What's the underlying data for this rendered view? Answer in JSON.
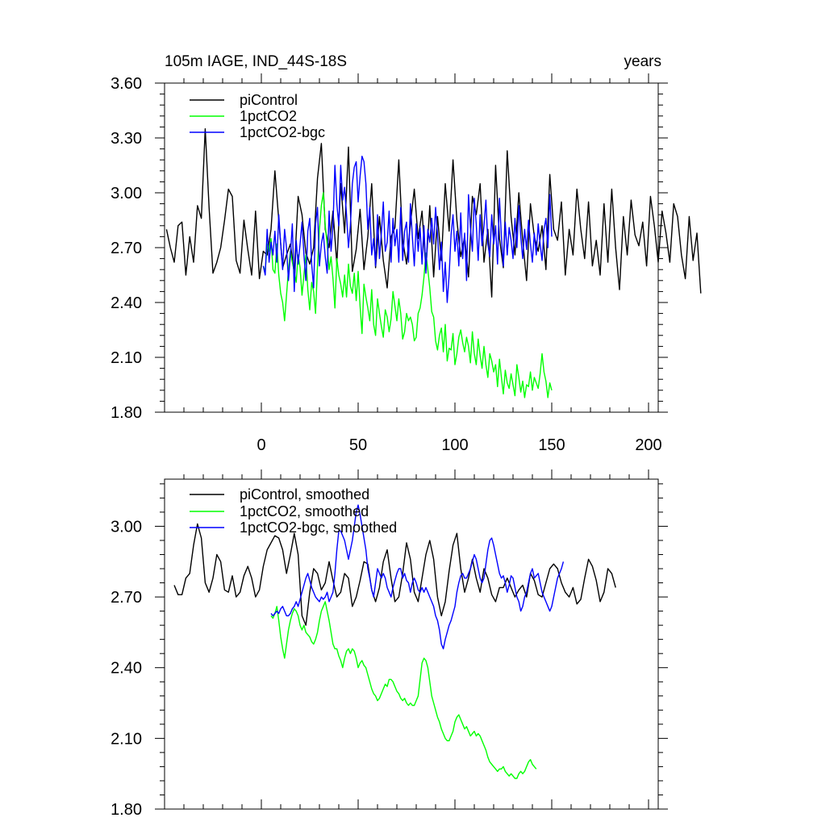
{
  "chart_data": [
    {
      "type": "line",
      "title_left": "105m IAGE, IND_44S-18S",
      "title_right": "years",
      "xlim": [
        -50,
        205
      ],
      "ylim": [
        1.8,
        3.6
      ],
      "xticks": [
        0,
        50,
        100,
        150,
        200
      ],
      "xtick_labels": [
        "0",
        "50",
        "100",
        "150",
        "200"
      ],
      "yticks": [
        1.8,
        2.1,
        2.4,
        2.7,
        3.0,
        3.3,
        3.6
      ],
      "ytick_labels": [
        "1.80",
        "2.10",
        "2.40",
        "2.70",
        "3.00",
        "3.30",
        "3.60"
      ],
      "legend": [
        "piControl",
        "1pctCO2",
        "1pctCO2-bgc"
      ],
      "series": [
        {
          "name": "piControl",
          "color": "#000000",
          "x_start": -49,
          "x_step": 2,
          "values": [
            2.8,
            2.7,
            2.62,
            2.82,
            2.84,
            2.55,
            2.76,
            2.62,
            2.93,
            2.86,
            3.35,
            2.92,
            2.56,
            2.62,
            2.7,
            2.85,
            3.02,
            2.98,
            2.63,
            2.56,
            2.85,
            2.69,
            2.55,
            2.9,
            2.53,
            2.68,
            2.66,
            2.8,
            3.12,
            2.85,
            2.59,
            2.66,
            2.72,
            2.56,
            2.98,
            2.88,
            2.67,
            2.61,
            2.7,
            3.08,
            3.27,
            2.8,
            2.7,
            2.9,
            2.61,
            3.05,
            2.78,
            3.25,
            2.57,
            2.69,
            2.91,
            2.58,
            2.76,
            3.05,
            2.59,
            2.87,
            2.63,
            2.48,
            2.76,
            2.81,
            3.18,
            2.74,
            2.61,
            2.83,
            3.02,
            2.75,
            2.9,
            2.58,
            2.93,
            2.54,
            2.87,
            2.63,
            3.05,
            2.79,
            3.18,
            2.85,
            2.65,
            2.76,
            2.54,
            2.98,
            2.88,
            3.05,
            2.62,
            2.8,
            2.43,
            3.15,
            2.75,
            2.59,
            3.23,
            2.87,
            2.66,
            3.0,
            2.74,
            2.52,
            2.94,
            2.76,
            2.68,
            2.82,
            2.58,
            3.1,
            2.8,
            2.74,
            2.95,
            2.55,
            2.8,
            2.66,
            3.02,
            2.8,
            2.64,
            2.95,
            2.6,
            2.74,
            2.55,
            2.94,
            2.62,
            3.02,
            2.7,
            2.47,
            2.87,
            2.66,
            2.96,
            2.77,
            2.71,
            2.84,
            2.6,
            2.98,
            2.82,
            2.62,
            2.9,
            2.78,
            2.62,
            2.94,
            2.87,
            2.66,
            2.53,
            2.87,
            2.63,
            2.78,
            2.45
          ]
        },
        {
          "name": "1pctCO2",
          "color": "#00ff00",
          "x_start": 1,
          "x_step": 1,
          "values": [
            2.6,
            2.57,
            2.72,
            2.68,
            2.75,
            2.58,
            2.56,
            2.72,
            2.55,
            2.45,
            2.4,
            2.3,
            2.44,
            2.58,
            2.68,
            2.62,
            2.57,
            2.51,
            2.66,
            2.59,
            2.44,
            2.55,
            2.66,
            2.47,
            2.36,
            2.51,
            2.46,
            2.34,
            2.6,
            2.8,
            2.93,
            3.0,
            2.82,
            2.72,
            2.58,
            2.65,
            2.53,
            2.37,
            2.64,
            2.55,
            2.5,
            2.43,
            2.55,
            2.43,
            2.61,
            2.49,
            2.45,
            2.56,
            2.41,
            2.57,
            2.38,
            2.23,
            2.5,
            2.43,
            2.37,
            2.3,
            2.47,
            2.28,
            2.22,
            2.42,
            2.34,
            2.27,
            2.21,
            2.36,
            2.32,
            2.24,
            2.31,
            2.46,
            2.38,
            2.3,
            2.42,
            2.34,
            2.2,
            2.24,
            2.34,
            2.3,
            2.32,
            2.28,
            2.19,
            2.21,
            2.34,
            2.37,
            2.44,
            2.54,
            2.67,
            2.58,
            2.48,
            2.35,
            2.32,
            2.19,
            2.14,
            2.22,
            2.26,
            2.13,
            2.28,
            2.08,
            2.15,
            2.14,
            2.23,
            2.06,
            2.12,
            2.21,
            2.25,
            2.18,
            2.13,
            2.21,
            2.16,
            2.07,
            2.24,
            2.12,
            2.06,
            2.2,
            2.11,
            2.04,
            2.16,
            2.06,
            1.99,
            2.12,
            2.08,
            2.02,
            2.06,
            1.94,
            2.09,
            1.99,
            1.9,
            2.03,
            1.96,
            1.93,
            2.01,
            1.95,
            1.89,
            2.06,
            1.99,
            1.91,
            1.97,
            1.88,
            1.95,
            1.94,
            2.02,
            1.92,
            1.99,
            1.96,
            1.93,
            2.01,
            2.12,
            2.02,
            1.97,
            1.88,
            1.96,
            1.92
          ]
        },
        {
          "name": "1pctCO2-bgc",
          "color": "#0000ff",
          "x_start": 1,
          "x_step": 1,
          "values": [
            2.6,
            2.55,
            2.8,
            2.62,
            2.73,
            2.66,
            2.79,
            2.62,
            2.88,
            2.72,
            2.58,
            2.8,
            2.7,
            2.52,
            2.66,
            2.83,
            2.46,
            2.74,
            2.61,
            2.72,
            2.84,
            2.66,
            2.52,
            2.79,
            2.86,
            2.61,
            2.48,
            2.83,
            2.92,
            2.6,
            2.72,
            2.78,
            2.65,
            2.56,
            2.9,
            2.68,
            2.82,
            3.15,
            2.94,
            2.82,
            3.15,
            2.96,
            3.03,
            2.88,
            2.7,
            2.82,
            3.05,
            3.14,
            3.17,
            2.95,
            3.09,
            3.2,
            3.17,
            3.05,
            2.8,
            2.92,
            2.66,
            2.75,
            2.6,
            2.88,
            2.64,
            2.78,
            2.95,
            2.68,
            2.73,
            2.9,
            2.62,
            2.86,
            2.71,
            2.8,
            2.62,
            2.92,
            2.63,
            2.79,
            2.84,
            2.62,
            2.94,
            2.76,
            2.6,
            2.83,
            2.68,
            2.81,
            2.61,
            2.82,
            2.56,
            2.8,
            2.73,
            2.86,
            2.72,
            2.92,
            2.77,
            2.58,
            2.73,
            2.46,
            2.62,
            2.4,
            2.55,
            2.77,
            2.88,
            2.68,
            2.79,
            2.6,
            2.89,
            2.64,
            2.78,
            2.52,
            2.99,
            2.81,
            2.68,
            2.97,
            2.83,
            2.63,
            2.88,
            2.71,
            2.82,
            2.96,
            2.72,
            2.65,
            2.88,
            2.72,
            2.82,
            2.61,
            2.97,
            2.76,
            2.6,
            2.84,
            2.66,
            2.81,
            2.74,
            2.64,
            2.86,
            2.7,
            2.93,
            2.76,
            2.64,
            2.8,
            2.69,
            2.85,
            2.72,
            2.62,
            2.78,
            2.66,
            2.83,
            2.72,
            2.63,
            2.8,
            2.86,
            2.7,
            2.99,
            2.76
          ]
        }
      ]
    },
    {
      "type": "line",
      "xlim": [
        -50,
        205
      ],
      "ylim": [
        1.8,
        3.2
      ],
      "xticks": [
        0,
        50,
        100,
        150,
        200
      ],
      "yticks": [
        1.8,
        2.1,
        2.4,
        2.7,
        3.0
      ],
      "ytick_labels": [
        "1.80",
        "2.10",
        "2.40",
        "2.70",
        "3.00"
      ],
      "legend": [
        "piControl, smoothed",
        "1pctCO2, smoothed",
        "1pctCO2-bgc, smoothed"
      ],
      "series": [
        {
          "name": "piControl, smoothed",
          "color": "#000000",
          "x_start": -45,
          "x_step": 2,
          "values": [
            2.75,
            2.71,
            2.71,
            2.78,
            2.8,
            2.92,
            3.01,
            2.95,
            2.76,
            2.72,
            2.78,
            2.88,
            2.85,
            2.73,
            2.72,
            2.79,
            2.7,
            2.72,
            2.79,
            2.83,
            2.78,
            2.7,
            2.73,
            2.83,
            2.9,
            2.93,
            2.96,
            2.95,
            2.9,
            2.8,
            2.88,
            2.97,
            2.88,
            2.62,
            2.58,
            2.72,
            2.82,
            2.8,
            2.73,
            2.76,
            2.85,
            2.77,
            2.7,
            2.72,
            2.8,
            2.78,
            2.66,
            2.7,
            2.77,
            2.85,
            2.84,
            2.73,
            2.68,
            2.74,
            2.85,
            2.9,
            2.78,
            2.68,
            2.7,
            2.8,
            2.93,
            2.86,
            2.72,
            2.68,
            2.78,
            2.88,
            2.94,
            2.86,
            2.7,
            2.62,
            2.68,
            2.81,
            2.92,
            2.97,
            2.82,
            2.72,
            2.78,
            2.86,
            2.78,
            2.72,
            2.82,
            2.78,
            2.71,
            2.68,
            2.74,
            2.74,
            2.78,
            2.74,
            2.7,
            2.73,
            2.75,
            2.7,
            2.8,
            2.77,
            2.71,
            2.7,
            2.76,
            2.82,
            2.84,
            2.82,
            2.76,
            2.72,
            2.7,
            2.74,
            2.67,
            2.69,
            2.78,
            2.86,
            2.83,
            2.77,
            2.68,
            2.72,
            2.82,
            2.8,
            2.74
          ]
        },
        {
          "name": "1pctCO2, smoothed",
          "color": "#00ff00",
          "x_start": 5,
          "x_step": 1,
          "values": [
            2.62,
            2.61,
            2.63,
            2.66,
            2.6,
            2.53,
            2.48,
            2.44,
            2.5,
            2.56,
            2.6,
            2.63,
            2.65,
            2.64,
            2.62,
            2.58,
            2.56,
            2.58,
            2.55,
            2.54,
            2.53,
            2.51,
            2.5,
            2.52,
            2.55,
            2.6,
            2.64,
            2.66,
            2.68,
            2.64,
            2.6,
            2.55,
            2.5,
            2.48,
            2.48,
            2.45,
            2.43,
            2.4,
            2.44,
            2.47,
            2.48,
            2.46,
            2.48,
            2.47,
            2.44,
            2.4,
            2.42,
            2.43,
            2.41,
            2.4,
            2.37,
            2.34,
            2.31,
            2.29,
            2.28,
            2.26,
            2.27,
            2.29,
            2.31,
            2.33,
            2.32,
            2.35,
            2.35,
            2.34,
            2.32,
            2.3,
            2.29,
            2.27,
            2.26,
            2.27,
            2.25,
            2.24,
            2.25,
            2.24,
            2.24,
            2.26,
            2.28,
            2.35,
            2.42,
            2.44,
            2.43,
            2.4,
            2.34,
            2.28,
            2.25,
            2.22,
            2.19,
            2.17,
            2.14,
            2.12,
            2.1,
            2.09,
            2.09,
            2.11,
            2.13,
            2.17,
            2.19,
            2.2,
            2.18,
            2.16,
            2.14,
            2.15,
            2.13,
            2.11,
            2.12,
            2.13,
            2.11,
            2.12,
            2.11,
            2.09,
            2.07,
            2.05,
            2.02,
            2.0,
            1.99,
            1.98,
            1.97,
            1.96,
            1.97,
            1.97,
            1.98,
            1.96,
            1.95,
            1.94,
            1.95,
            1.94,
            1.93,
            1.93,
            1.95,
            1.96,
            1.95,
            1.96,
            1.98,
            2.0,
            2.01,
            1.99,
            1.98,
            1.97
          ]
        },
        {
          "name": "1pctCO2-bgc, smoothed",
          "color": "#0000ff",
          "x_start": 5,
          "x_step": 1,
          "values": [
            2.63,
            2.62,
            2.63,
            2.64,
            2.63,
            2.65,
            2.66,
            2.64,
            2.62,
            2.62,
            2.63,
            2.65,
            2.66,
            2.68,
            2.66,
            2.69,
            2.72,
            2.75,
            2.78,
            2.8,
            2.77,
            2.74,
            2.72,
            2.7,
            2.69,
            2.68,
            2.7,
            2.69,
            2.7,
            2.72,
            2.68,
            2.7,
            2.72,
            2.8,
            2.9,
            2.98,
            2.98,
            2.96,
            2.94,
            2.9,
            2.86,
            2.9,
            2.94,
            3.0,
            3.06,
            3.09,
            3.05,
            3.0,
            2.95,
            2.9,
            2.82,
            2.78,
            2.73,
            2.7,
            2.76,
            2.82,
            2.8,
            2.78,
            2.8,
            2.78,
            2.74,
            2.72,
            2.7,
            2.74,
            2.77,
            2.8,
            2.82,
            2.82,
            2.78,
            2.8,
            2.77,
            2.76,
            2.72,
            2.76,
            2.78,
            2.76,
            2.73,
            2.72,
            2.74,
            2.72,
            2.74,
            2.72,
            2.7,
            2.68,
            2.66,
            2.62,
            2.6,
            2.56,
            2.5,
            2.48,
            2.52,
            2.55,
            2.58,
            2.6,
            2.63,
            2.66,
            2.72,
            2.76,
            2.79,
            2.8,
            2.78,
            2.78,
            2.8,
            2.82,
            2.85,
            2.88,
            2.86,
            2.82,
            2.78,
            2.76,
            2.78,
            2.84,
            2.9,
            2.94,
            2.95,
            2.92,
            2.88,
            2.84,
            2.8,
            2.78,
            2.79,
            2.76,
            2.72,
            2.75,
            2.79,
            2.78,
            2.74,
            2.7,
            2.68,
            2.64,
            2.66,
            2.7,
            2.72,
            2.76,
            2.8,
            2.82,
            2.78,
            2.79,
            2.8,
            2.76,
            2.72,
            2.7,
            2.68,
            2.66,
            2.64,
            2.66,
            2.7,
            2.74,
            2.78,
            2.8,
            2.82,
            2.85
          ]
        }
      ]
    }
  ]
}
